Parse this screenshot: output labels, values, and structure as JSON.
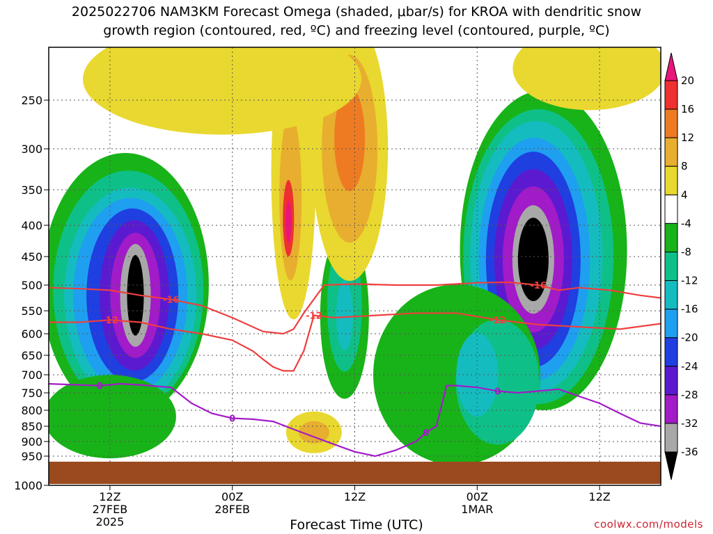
{
  "title": {
    "line1": "2025022706 NAM3KM Forecast Omega (shaded, μbar/s) for KROA with dendritic snow",
    "line2": "growth region (contoured, red, ºC) and freezing level (contoured, purple, ºC)"
  },
  "xaxis_title": "Forecast Time (UTC)",
  "credit": "coolwx.com/models",
  "chart_data": {
    "type": "heatmap",
    "title": "2025022706 NAM3KM Forecast Omega (shaded, μbar/s) for KROA with dendritic snow growth region (contoured, red, ºC) and freezing level (contoured, purple, ºC)",
    "xlabel": "Forecast Time (UTC)",
    "ylabel": "",
    "x_ticks": [
      {
        "hours": 6,
        "lines": [
          "12Z",
          "27FEB",
          "2025"
        ]
      },
      {
        "hours": 18,
        "lines": [
          "00Z",
          "28FEB"
        ]
      },
      {
        "hours": 30,
        "lines": [
          "12Z"
        ]
      },
      {
        "hours": 42,
        "lines": [
          "00Z",
          "1MAR"
        ]
      },
      {
        "hours": 54,
        "lines": [
          "12Z"
        ]
      }
    ],
    "xlim_hours": [
      0,
      60
    ],
    "y_scale": "pressure (reversed, log-like)",
    "y_ticks": [
      250,
      300,
      350,
      400,
      450,
      500,
      550,
      600,
      650,
      700,
      750,
      800,
      850,
      900,
      950,
      1000
    ],
    "ylim": [
      200,
      1000
    ],
    "grid": true,
    "colorbar": {
      "labels": [
        "20",
        "16",
        "12",
        "8",
        "4",
        "-4",
        "-8",
        "-12",
        "-16",
        "-20",
        "-24",
        "-28",
        "-32",
        "-36"
      ],
      "colors": [
        "#e8157a",
        "#ee3030",
        "#ee7b22",
        "#e8ae2f",
        "#e9d82f",
        "#ffffff",
        "#18b318",
        "#0ec087",
        "#14bcc0",
        "#1f9ff0",
        "#1f3fe0",
        "#5b1ad0",
        "#a21bc8",
        "#a8a8a8",
        "#000000"
      ]
    },
    "omega_regions": [
      {
        "level": -36,
        "t_hours": 8.5,
        "p": 520,
        "note": "peak upward motion 27FEB"
      },
      {
        "level": -36,
        "t_hours": 47.5,
        "p": 460,
        "note": "peak upward motion 1MAR"
      },
      {
        "level": 20,
        "t_hours": 23.5,
        "p": 390,
        "note": "narrow sinking core"
      },
      {
        "level": 12,
        "t_hours": 29.5,
        "p": 290,
        "note": "upper sinking region"
      }
    ],
    "series": [
      {
        "name": "-12",
        "color": "#ee3f3f",
        "x_hours": [
          0,
          3,
          6,
          9,
          12,
          15,
          18,
          20,
          21,
          22,
          23,
          24,
          25,
          26,
          28,
          32,
          36,
          40,
          44,
          48,
          52,
          56,
          60
        ],
        "y_hPa": [
          575,
          575,
          570,
          575,
          590,
          600,
          615,
          640,
          660,
          680,
          690,
          690,
          640,
          560,
          565,
          560,
          555,
          555,
          570,
          580,
          585,
          590,
          578
        ]
      },
      {
        "name": "-16",
        "color": "#ee3f3f",
        "x_hours": [
          0,
          3,
          6,
          9,
          12,
          15,
          18,
          21,
          23,
          24,
          25,
          27,
          30,
          34,
          38,
          42,
          45,
          48,
          50,
          52,
          55,
          58,
          60
        ],
        "y_hPa": [
          505,
          507,
          510,
          520,
          528,
          540,
          565,
          595,
          600,
          590,
          555,
          500,
          498,
          500,
          500,
          496,
          495,
          500,
          510,
          505,
          510,
          520,
          525
        ]
      },
      {
        "name": "0",
        "color": "#a21bc8",
        "x_hours": [
          0,
          3,
          5,
          7,
          9,
          12,
          14,
          16,
          18,
          20,
          22,
          24,
          26,
          28,
          30,
          32,
          34,
          36,
          37,
          38,
          39,
          40,
          42,
          44,
          46,
          48,
          50,
          52,
          54,
          56,
          58,
          60
        ],
        "y_hPa": [
          725,
          728,
          730,
          725,
          728,
          735,
          780,
          810,
          825,
          828,
          835,
          860,
          885,
          910,
          935,
          950,
          930,
          900,
          870,
          850,
          730,
          730,
          735,
          745,
          750,
          745,
          740,
          760,
          780,
          810,
          840,
          850
        ]
      }
    ]
  }
}
